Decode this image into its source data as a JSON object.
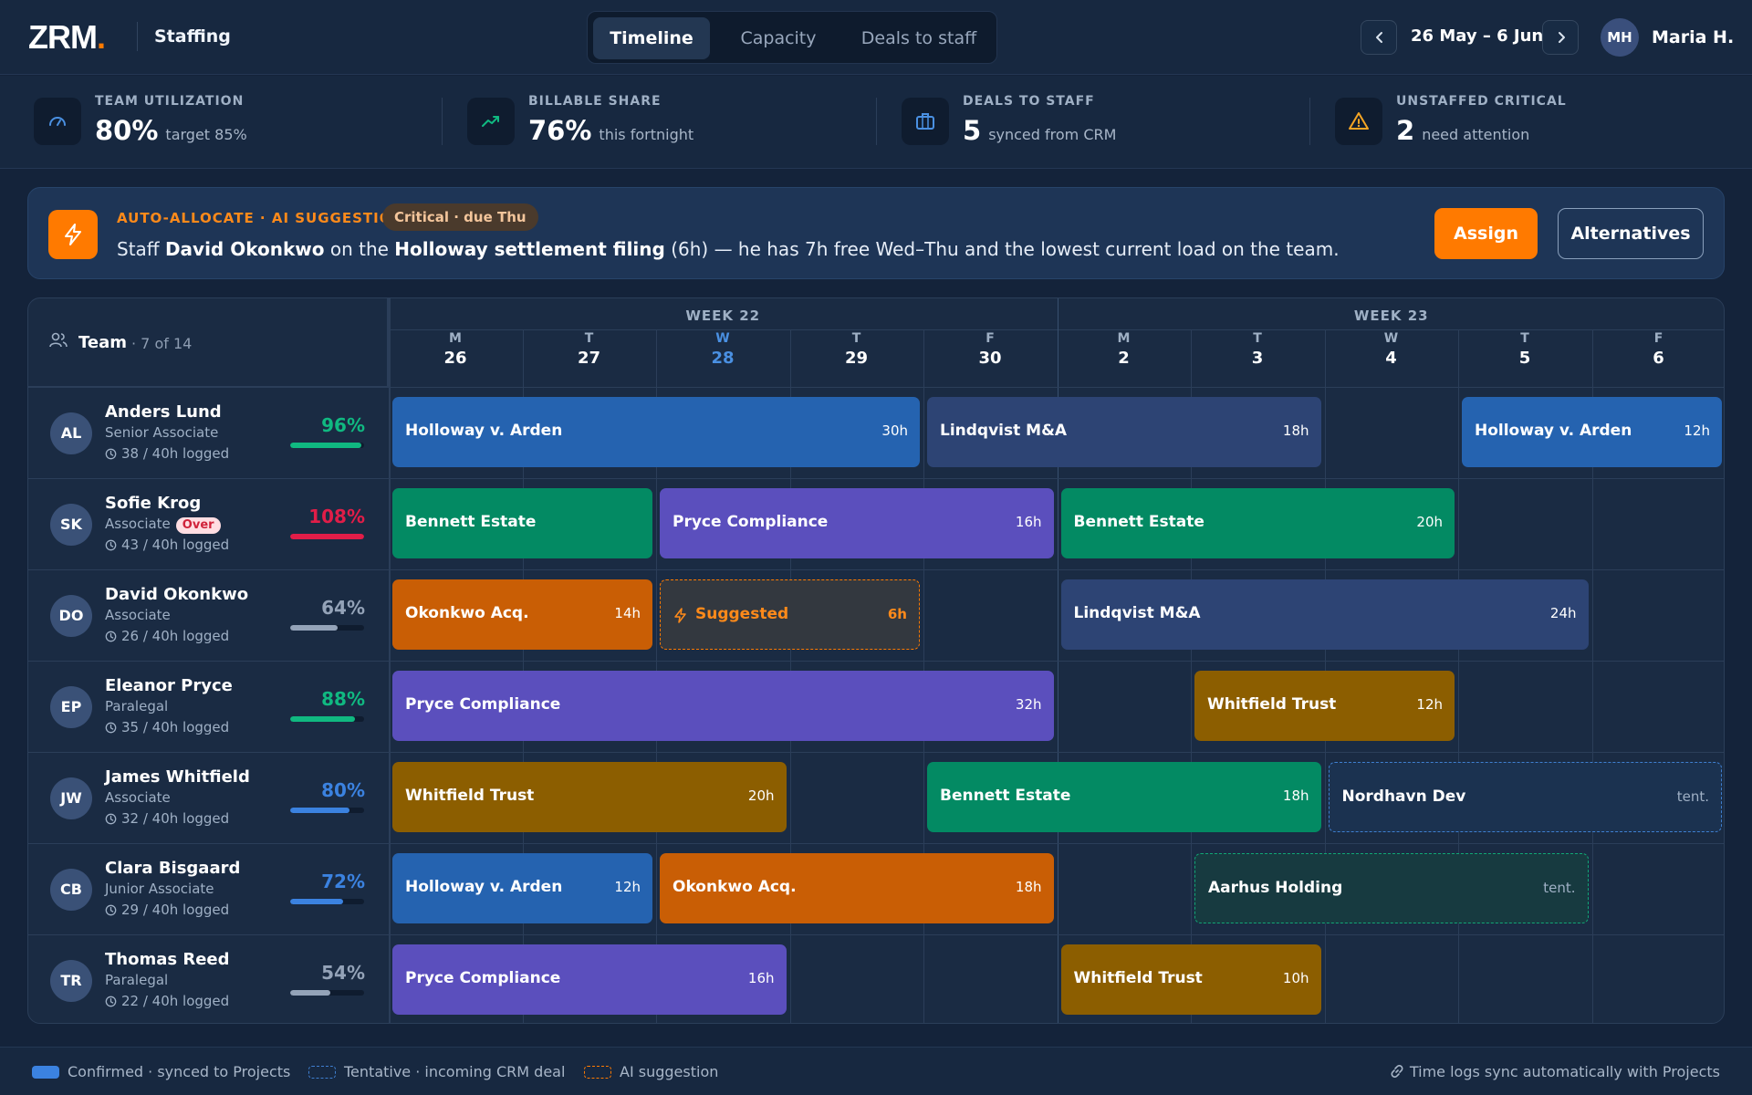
{
  "header": {
    "logo_text": "ZRM",
    "logo_dot": ".",
    "app_name": "Staffing",
    "tabs": [
      {
        "label": "Timeline",
        "active": true
      },
      {
        "label": "Capacity",
        "active": false
      },
      {
        "label": "Deals to staff",
        "active": false
      }
    ],
    "date_range": "26 May – 6 Jun",
    "user_initials": "MH",
    "user_name": "Maria H."
  },
  "stats": [
    {
      "label": "TEAM UTILIZATION",
      "value": "80%",
      "sub": "target 85%",
      "icon": "gauge-icon"
    },
    {
      "label": "BILLABLE SHARE",
      "value": "76%",
      "sub": "this fortnight",
      "icon": "trending-up-icon"
    },
    {
      "label": "DEALS TO STAFF",
      "value": "5",
      "sub": "synced from CRM",
      "icon": "briefcase-icon"
    },
    {
      "label": "UNSTAFFED CRITICAL",
      "value": "2",
      "sub": "need attention",
      "icon": "warning-icon"
    }
  ],
  "suggestion": {
    "kicker": "AUTO-ALLOCATE · AI SUGGESTION",
    "badge": "Critical · due Thu",
    "text_1": "Staff ",
    "person": "David Okonkwo",
    "text_2": " on the ",
    "matter": "Holloway settlement filing",
    "text_3": " (6h) — he has 7h free Wed–Thu and the lowest current load on the team.",
    "assign_label": "Assign",
    "alternatives_label": "Alternatives"
  },
  "timeline": {
    "team_label": "Team",
    "team_count": "· 7 of 14",
    "weeks": [
      "WEEK 22",
      "WEEK 23"
    ],
    "days": [
      {
        "dow": "M",
        "num": "26"
      },
      {
        "dow": "T",
        "num": "27"
      },
      {
        "dow": "W",
        "num": "28",
        "today": true
      },
      {
        "dow": "T",
        "num": "29"
      },
      {
        "dow": "F",
        "num": "30"
      },
      {
        "dow": "M",
        "num": "2"
      },
      {
        "dow": "T",
        "num": "3"
      },
      {
        "dow": "W",
        "num": "4"
      },
      {
        "dow": "T",
        "num": "5"
      },
      {
        "dow": "F",
        "num": "6"
      }
    ],
    "people": [
      {
        "initials": "AL",
        "name": "Anders Lund",
        "role": "Senior Associate",
        "over": "",
        "logged": "38 / 40h logged",
        "pct": "96%",
        "util": 0.96,
        "color": "#10b981",
        "blocks": [
          {
            "title": "Holloway v. Arden",
            "hours": "30h",
            "start": 0,
            "span": 4,
            "style": "c-blue"
          },
          {
            "title": "Lindqvist M&A",
            "hours": "18h",
            "start": 4,
            "span": 3,
            "style": "c-navy"
          },
          {
            "title": "Holloway v. Arden",
            "hours": "12h",
            "start": 8,
            "span": 2,
            "style": "c-blue"
          }
        ]
      },
      {
        "initials": "SK",
        "name": "Sofie Krog",
        "role": "Associate",
        "over": "Over",
        "logged": "43 / 40h logged",
        "pct": "108%",
        "util": 1.0,
        "color": "#e11d48",
        "blocks": [
          {
            "title": "Bennett Estate",
            "hours": "",
            "start": 0,
            "span": 2,
            "style": "c-green"
          },
          {
            "title": "Pryce Compliance",
            "hours": "16h",
            "start": 2,
            "span": 3,
            "style": "c-purple"
          },
          {
            "title": "Bennett Estate",
            "hours": "20h",
            "start": 5,
            "span": 3,
            "style": "c-green"
          }
        ]
      },
      {
        "initials": "DO",
        "name": "David Okonkwo",
        "role": "Associate",
        "over": "",
        "logged": "26 / 40h logged",
        "pct": "64%",
        "util": 0.64,
        "color": "#94a3b8",
        "blocks": [
          {
            "title": "Okonkwo Acq.",
            "hours": "14h",
            "start": 0,
            "span": 2,
            "style": "c-orange"
          },
          {
            "title": "Suggested",
            "hours": "6h",
            "start": 2,
            "span": 2,
            "style": "c-suggest"
          },
          {
            "title": "Lindqvist M&A",
            "hours": "24h",
            "start": 5,
            "span": 4,
            "style": "c-navy"
          }
        ]
      },
      {
        "initials": "EP",
        "name": "Eleanor Pryce",
        "role": "Paralegal",
        "over": "",
        "logged": "35 / 40h logged",
        "pct": "88%",
        "util": 0.88,
        "color": "#10b981",
        "blocks": [
          {
            "title": "Pryce Compliance",
            "hours": "32h",
            "start": 0,
            "span": 5,
            "style": "c-purple"
          },
          {
            "title": "Whitfield Trust",
            "hours": "12h",
            "start": 6,
            "span": 2,
            "style": "c-gold"
          }
        ]
      },
      {
        "initials": "JW",
        "name": "James Whitfield",
        "role": "Associate",
        "over": "",
        "logged": "32 / 40h logged",
        "pct": "80%",
        "util": 0.8,
        "color": "#3b82e0",
        "blocks": [
          {
            "title": "Whitfield Trust",
            "hours": "20h",
            "start": 0,
            "span": 3,
            "style": "c-gold"
          },
          {
            "title": "Bennett Estate",
            "hours": "18h",
            "start": 4,
            "span": 3,
            "style": "c-green"
          },
          {
            "title": "Nordhavn Dev",
            "hours": "tent.",
            "start": 7,
            "span": 3,
            "style": "c-tent-blue"
          }
        ]
      },
      {
        "initials": "CB",
        "name": "Clara Bisgaard",
        "role": "Junior Associate",
        "over": "",
        "logged": "29 / 40h logged",
        "pct": "72%",
        "util": 0.72,
        "color": "#3b82e0",
        "blocks": [
          {
            "title": "Holloway v. Arden",
            "hours": "12h",
            "start": 0,
            "span": 2,
            "style": "c-blue"
          },
          {
            "title": "Okonkwo Acq.",
            "hours": "18h",
            "start": 2,
            "span": 3,
            "style": "c-orange"
          },
          {
            "title": "Aarhus Holding",
            "hours": "tent.",
            "start": 6,
            "span": 3,
            "style": "c-tent-green"
          }
        ]
      },
      {
        "initials": "TR",
        "name": "Thomas Reed",
        "role": "Paralegal",
        "over": "",
        "logged": "22 / 40h logged",
        "pct": "54%",
        "util": 0.54,
        "color": "#94a3b8",
        "blocks": [
          {
            "title": "Pryce Compliance",
            "hours": "16h",
            "start": 0,
            "span": 3,
            "style": "c-purple"
          },
          {
            "title": "Whitfield Trust",
            "hours": "10h",
            "start": 5,
            "span": 2,
            "style": "c-gold"
          }
        ]
      }
    ]
  },
  "footer": {
    "legend_confirmed": "Confirmed · synced to Projects",
    "legend_tentative": "Tentative · incoming CRM deal",
    "legend_ai": "AI suggestion",
    "sync_note": "Time logs sync automatically with Projects"
  }
}
